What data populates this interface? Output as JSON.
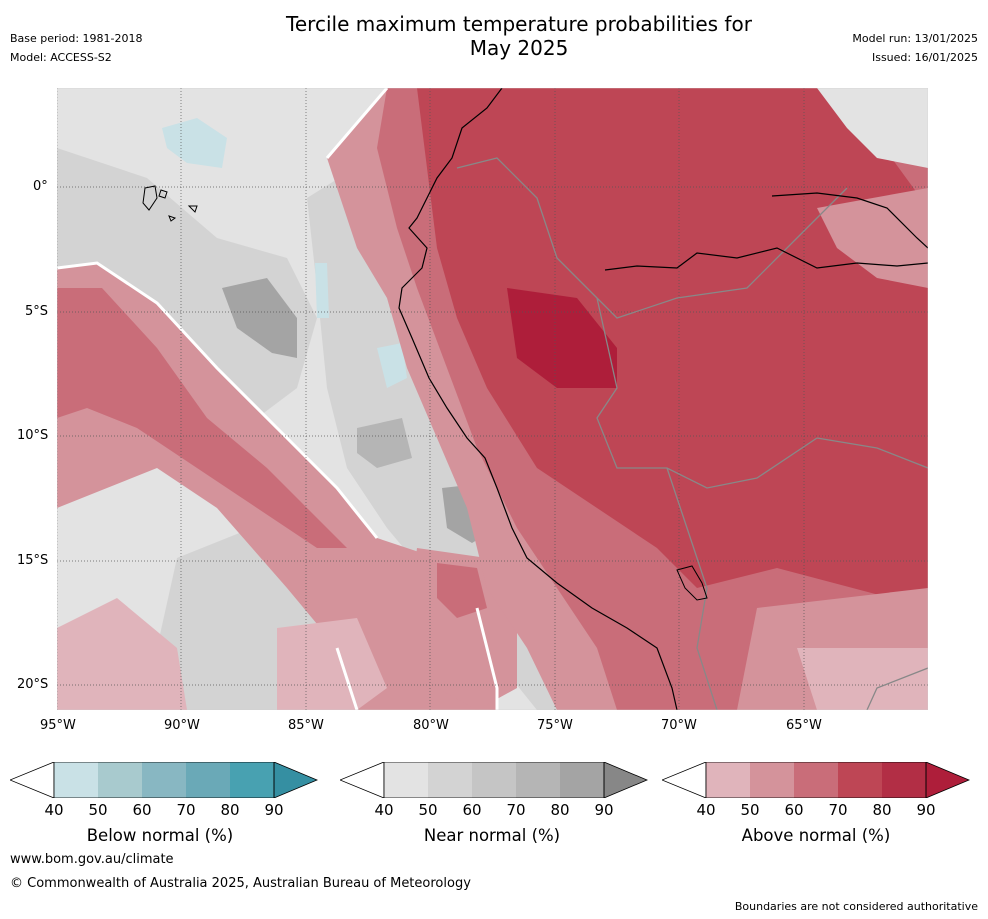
{
  "header": {
    "title_line1": "Tercile maximum temperature probabilities for",
    "title_line2": "May 2025",
    "base_period": "Base period: 1981-2018",
    "model": "Model: ACCESS-S2",
    "model_run": "Model run: 13/01/2025",
    "issued": "Issued: 16/01/2025"
  },
  "map": {
    "lat_labels": [
      "0°",
      "5°S",
      "10°S",
      "15°S",
      "20°S"
    ],
    "lon_labels": [
      "95°W",
      "90°W",
      "85°W",
      "80°W",
      "75°W",
      "70°W",
      "65°W"
    ],
    "colors": {
      "gray_light": "#e3e3e3",
      "gray_mid": "#d3d3d3",
      "gray_dark": "#a4a4a4",
      "blue_light": "#c9e1e6",
      "red_pale": "#e0b4bb",
      "red_light": "#d4939b",
      "red_mid": "#c96d79",
      "red_strong": "#be4655",
      "red_dark": "#ae1e3a"
    }
  },
  "legends": [
    {
      "label": "Below normal (%)",
      "ticks": [
        "40",
        "50",
        "60",
        "70",
        "80",
        "90"
      ],
      "colors": [
        "#c9e1e6",
        "#a8cace",
        "#88b7c2",
        "#6aa9b7",
        "#48a1b1",
        "#358fa2"
      ]
    },
    {
      "label": "Near normal (%)",
      "ticks": [
        "40",
        "50",
        "60",
        "70",
        "80",
        "90"
      ],
      "colors": [
        "#e3e3e3",
        "#d3d3d3",
        "#c5c5c5",
        "#b5b5b5",
        "#a4a4a4",
        "#878787"
      ]
    },
    {
      "label": "Above normal (%)",
      "ticks": [
        "40",
        "50",
        "60",
        "70",
        "80",
        "90"
      ],
      "colors": [
        "#e0b4bb",
        "#d4939b",
        "#c96d79",
        "#be4655",
        "#b22e45",
        "#ae1e3a"
      ]
    }
  ],
  "footer": {
    "website": "www.bom.gov.au/climate",
    "copyright": "© Commonwealth of Australia 2025, Australian Bureau of Meteorology",
    "disclaimer": "Boundaries are not considered authoritative"
  }
}
